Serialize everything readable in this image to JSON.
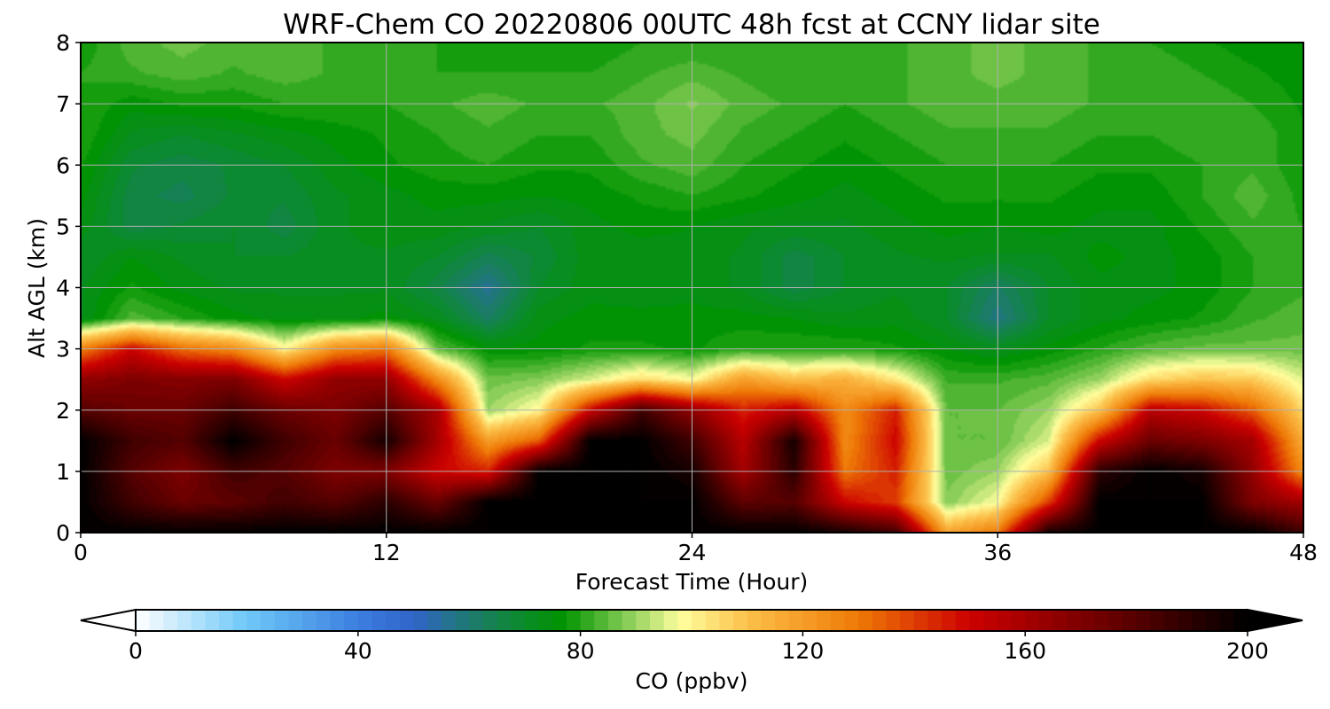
{
  "chart_data": {
    "type": "heatmap",
    "title": "WRF-Chem CO  20220806 00UTC 48h fcst at CCNY lidar site",
    "xlabel": "Forecast Time (Hour)",
    "ylabel": "Alt AGL (km)",
    "xlim": [
      0,
      48
    ],
    "ylim": [
      0,
      8
    ],
    "x_ticks": [
      0,
      12,
      24,
      36,
      48
    ],
    "x_tick_labels": [
      "0",
      "12",
      "24",
      "36",
      "48"
    ],
    "y_ticks": [
      0,
      1,
      2,
      3,
      4,
      5,
      6,
      7,
      8
    ],
    "y_tick_labels": [
      "0",
      "1",
      "2",
      "3",
      "4",
      "5",
      "6",
      "7",
      "8"
    ],
    "grid": true,
    "colorbar": {
      "label": "CO  (ppbv)",
      "range": [
        0,
        200
      ],
      "ticks": [
        0,
        40,
        80,
        120,
        160,
        200
      ],
      "tick_labels": [
        "0",
        "40",
        "80",
        "120",
        "160",
        "200"
      ],
      "extend": "both",
      "color_stops": [
        {
          "value": 0,
          "color": "#ffffff"
        },
        {
          "value": 20,
          "color": "#6ec8f7"
        },
        {
          "value": 40,
          "color": "#3c7ee0"
        },
        {
          "value": 50,
          "color": "#3064c8"
        },
        {
          "value": 60,
          "color": "#1e7a70"
        },
        {
          "value": 70,
          "color": "#0a8c28"
        },
        {
          "value": 77,
          "color": "#009400"
        },
        {
          "value": 90,
          "color": "#9ad462"
        },
        {
          "value": 98,
          "color": "#ffff9e"
        },
        {
          "value": 110,
          "color": "#fcc04a"
        },
        {
          "value": 130,
          "color": "#ef7a06"
        },
        {
          "value": 150,
          "color": "#cc0000"
        },
        {
          "value": 175,
          "color": "#6a0000"
        },
        {
          "value": 200,
          "color": "#000000"
        }
      ]
    },
    "field": {
      "hours": [
        0,
        2,
        4,
        6,
        8,
        10,
        12,
        14,
        16,
        18,
        20,
        22,
        24,
        26,
        28,
        30,
        32,
        34,
        36,
        38,
        40,
        42,
        44,
        46,
        48
      ],
      "altitudes_km": [
        0,
        0.5,
        1,
        1.5,
        2,
        2.5,
        3,
        3.5,
        4,
        4.5,
        5,
        5.5,
        6,
        6.5,
        7,
        7.5,
        8
      ],
      "co_ppbv": [
        [
          200,
          200,
          200,
          200,
          200,
          200,
          200,
          200,
          200,
          200,
          200,
          200,
          200,
          200,
          200,
          195,
          185,
          118,
          130,
          195,
          200,
          200,
          200,
          200,
          185
        ],
        [
          200,
          185,
          175,
          178,
          185,
          180,
          190,
          175,
          200,
          200,
          200,
          200,
          200,
          178,
          180,
          150,
          140,
          88,
          98,
          140,
          200,
          200,
          200,
          170,
          160
        ],
        [
          200,
          180,
          170,
          185,
          180,
          170,
          170,
          150,
          145,
          200,
          200,
          200,
          195,
          160,
          190,
          130,
          145,
          86,
          90,
          110,
          190,
          200,
          195,
          165,
          125
        ],
        [
          200,
          185,
          180,
          200,
          185,
          175,
          195,
          160,
          120,
          135,
          200,
          200,
          185,
          155,
          195,
          125,
          150,
          85,
          85,
          95,
          150,
          175,
          170,
          160,
          115
        ],
        [
          180,
          175,
          175,
          185,
          175,
          170,
          180,
          160,
          90,
          100,
          150,
          185,
          165,
          145,
          155,
          125,
          145,
          85,
          85,
          90,
          110,
          155,
          150,
          135,
          105
        ],
        [
          165,
          170,
          168,
          170,
          150,
          165,
          165,
          125,
          86,
          88,
          95,
          105,
          98,
          120,
          110,
          115,
          102,
          82,
          82,
          84,
          90,
          105,
          110,
          108,
          95
        ],
        [
          128,
          150,
          132,
          125,
          100,
          125,
          130,
          85,
          76,
          76,
          78,
          78,
          77,
          80,
          80,
          80,
          78,
          75,
          72,
          76,
          80,
          84,
          86,
          86,
          86
        ],
        [
          72,
          84,
          80,
          76,
          74,
          74,
          76,
          72,
          62,
          74,
          76,
          76,
          76,
          76,
          75,
          73,
          74,
          70,
          58,
          70,
          74,
          76,
          78,
          82,
          84
        ],
        [
          72,
          78,
          74,
          72,
          72,
          72,
          72,
          66,
          56,
          70,
          74,
          73,
          74,
          72,
          66,
          70,
          72,
          70,
          62,
          70,
          74,
          74,
          76,
          80,
          82
        ],
        [
          70,
          75,
          72,
          70,
          70,
          72,
          72,
          70,
          64,
          68,
          74,
          73,
          74,
          72,
          66,
          70,
          72,
          73,
          72,
          72,
          76,
          74,
          76,
          80,
          80
        ],
        [
          74,
          66,
          68,
          70,
          66,
          72,
          74,
          74,
          72,
          70,
          74,
          76,
          75,
          73,
          72,
          72,
          74,
          76,
          75,
          76,
          74,
          74,
          78,
          82,
          80
        ],
        [
          76,
          66,
          64,
          68,
          68,
          72,
          74,
          76,
          76,
          75,
          76,
          78,
          80,
          78,
          76,
          74,
          76,
          78,
          78,
          78,
          76,
          76,
          80,
          84,
          79
        ],
        [
          78,
          68,
          66,
          68,
          70,
          74,
          77,
          79,
          80,
          78,
          78,
          82,
          84,
          80,
          78,
          76,
          78,
          80,
          80,
          80,
          78,
          78,
          80,
          82,
          78
        ],
        [
          80,
          72,
          70,
          72,
          74,
          76,
          78,
          80,
          82,
          80,
          80,
          84,
          86,
          82,
          80,
          78,
          80,
          82,
          82,
          82,
          80,
          80,
          82,
          82,
          78
        ],
        [
          80,
          76,
          78,
          78,
          80,
          80,
          80,
          82,
          84,
          82,
          82,
          84,
          88,
          84,
          82,
          80,
          82,
          84,
          84,
          84,
          82,
          80,
          82,
          80,
          77
        ],
        [
          80,
          82,
          84,
          82,
          84,
          82,
          82,
          80,
          80,
          80,
          80,
          82,
          84,
          82,
          80,
          82,
          82,
          84,
          86,
          84,
          82,
          82,
          80,
          78,
          76
        ],
        [
          78,
          84,
          86,
          84,
          84,
          82,
          80,
          80,
          78,
          78,
          78,
          80,
          80,
          80,
          80,
          80,
          82,
          84,
          86,
          84,
          82,
          80,
          78,
          76,
          76
        ]
      ]
    }
  }
}
